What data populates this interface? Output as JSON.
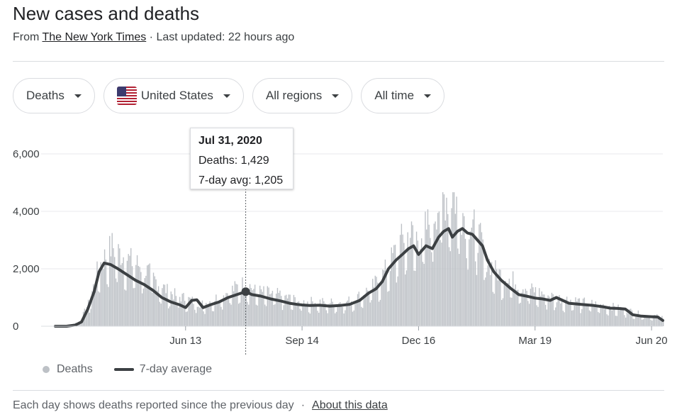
{
  "header": {
    "title": "New cases and deaths",
    "source_prefix": "From",
    "source_name": "The New York Times",
    "source_suffix": "· Last updated: 22 hours ago"
  },
  "filters": {
    "metric": "Deaths",
    "location": "United States",
    "region": "All regions",
    "period": "All time"
  },
  "tooltip": {
    "date": "Jul 31, 2020",
    "deaths": "Deaths: 1,429",
    "avg": "7-day avg: 1,205"
  },
  "legend": {
    "bars": "Deaths",
    "line": "7-day average"
  },
  "footer": {
    "note": "Each day shows deaths reported since the previous day",
    "separator": "·",
    "link": "About this data"
  },
  "colors": {
    "bars": "#bdc1c6",
    "line": "#3c4043",
    "grid": "#e8eaed",
    "flag_red": "#b22234",
    "flag_blue": "#3c3b6e"
  },
  "chart_data": {
    "type": "bar",
    "title": "New cases and deaths",
    "ylim": [
      0,
      6000
    ],
    "yticks": [
      0,
      2000,
      4000,
      6000
    ],
    "ytick_labels": [
      "0",
      "2,000",
      "4,000",
      "6,000"
    ],
    "xlim": [
      "2020-03-01",
      "2021-06-29"
    ],
    "xticks": [
      "2020-06-13",
      "2020-09-14",
      "2020-12-16",
      "2021-03-19",
      "2021-06-20"
    ],
    "xtick_labels": [
      "Jun 13",
      "Sep 14",
      "Dec 16",
      "Mar 19",
      "Jun 20"
    ],
    "highlight": {
      "x": "2020-07-31",
      "deaths": 1429,
      "avg": 1205
    },
    "series": [
      {
        "name": "Deaths",
        "style": "bars",
        "x": [
          "2020-03-01",
          "2020-03-10",
          "2020-03-20",
          "2020-03-28",
          "2020-04-04",
          "2020-04-10",
          "2020-04-15",
          "2020-04-20",
          "2020-04-25",
          "2020-05-01",
          "2020-05-08",
          "2020-05-15",
          "2020-05-22",
          "2020-05-29",
          "2020-06-05",
          "2020-06-13",
          "2020-06-20",
          "2020-06-27",
          "2020-07-04",
          "2020-07-11",
          "2020-07-18",
          "2020-07-25",
          "2020-07-31",
          "2020-08-07",
          "2020-08-15",
          "2020-08-22",
          "2020-08-29",
          "2020-09-05",
          "2020-09-14",
          "2020-09-22",
          "2020-09-30",
          "2020-10-08",
          "2020-10-16",
          "2020-10-24",
          "2020-11-01",
          "2020-11-08",
          "2020-11-15",
          "2020-11-22",
          "2020-11-29",
          "2020-12-04",
          "2020-12-09",
          "2020-12-16",
          "2020-12-22",
          "2020-12-29",
          "2021-01-05",
          "2021-01-12",
          "2021-01-18",
          "2021-01-25",
          "2021-02-01",
          "2021-02-08",
          "2021-02-15",
          "2021-02-22",
          "2021-03-01",
          "2021-03-08",
          "2021-03-19",
          "2021-03-29",
          "2021-04-08",
          "2021-04-18",
          "2021-04-28",
          "2021-05-08",
          "2021-05-18",
          "2021-05-28",
          "2021-06-07",
          "2021-06-14",
          "2021-06-20",
          "2021-06-29"
        ],
        "values": [
          0,
          10,
          150,
          800,
          1900,
          2300,
          2600,
          2400,
          2250,
          2100,
          1950,
          1700,
          1400,
          1150,
          1000,
          900,
          800,
          720,
          850,
          1000,
          1150,
          1300,
          1429,
          1150,
          1100,
          1050,
          1000,
          900,
          780,
          800,
          780,
          770,
          780,
          850,
          1050,
          1250,
          1550,
          2000,
          2600,
          2900,
          3000,
          2900,
          3200,
          3800,
          4200,
          4300,
          3800,
          3400,
          3000,
          2200,
          1800,
          1600,
          1500,
          1300,
          1150,
          1000,
          900,
          850,
          780,
          700,
          650,
          550,
          450,
          350,
          350,
          300
        ]
      },
      {
        "name": "7-day average",
        "style": "line",
        "x": [
          "2020-03-01",
          "2020-03-10",
          "2020-03-17",
          "2020-03-22",
          "2020-03-27",
          "2020-04-01",
          "2020-04-05",
          "2020-04-09",
          "2020-04-14",
          "2020-04-20",
          "2020-04-27",
          "2020-05-04",
          "2020-05-11",
          "2020-05-18",
          "2020-05-25",
          "2020-06-01",
          "2020-06-08",
          "2020-06-13",
          "2020-06-18",
          "2020-06-22",
          "2020-06-27",
          "2020-07-03",
          "2020-07-10",
          "2020-07-17",
          "2020-07-24",
          "2020-07-31",
          "2020-08-05",
          "2020-08-12",
          "2020-08-20",
          "2020-08-28",
          "2020-09-04",
          "2020-09-10",
          "2020-09-14",
          "2020-09-20",
          "2020-09-28",
          "2020-10-06",
          "2020-10-14",
          "2020-10-22",
          "2020-10-30",
          "2020-11-06",
          "2020-11-12",
          "2020-11-17",
          "2020-11-22",
          "2020-11-28",
          "2020-12-03",
          "2020-12-08",
          "2020-12-12",
          "2020-12-16",
          "2020-12-22",
          "2020-12-27",
          "2021-01-01",
          "2021-01-05",
          "2021-01-09",
          "2021-01-12",
          "2021-01-16",
          "2021-01-20",
          "2021-01-24",
          "2021-01-28",
          "2021-02-01",
          "2021-02-05",
          "2021-02-09",
          "2021-02-14",
          "2021-02-20",
          "2021-02-28",
          "2021-03-06",
          "2021-03-12",
          "2021-03-19",
          "2021-03-25",
          "2021-03-31",
          "2021-04-05",
          "2021-04-15",
          "2021-04-25",
          "2021-05-05",
          "2021-05-12",
          "2021-05-18",
          "2021-05-24",
          "2021-05-30",
          "2021-06-05",
          "2021-06-12",
          "2021-06-20",
          "2021-06-25",
          "2021-06-29"
        ],
        "values": [
          0,
          0,
          40,
          150,
          600,
          1200,
          1900,
          2200,
          2150,
          2000,
          1800,
          1600,
          1450,
          1250,
          1000,
          850,
          750,
          650,
          900,
          920,
          650,
          750,
          850,
          1000,
          1100,
          1205,
          1100,
          1050,
          950,
          880,
          800,
          760,
          740,
          720,
          730,
          700,
          720,
          760,
          900,
          1150,
          1300,
          1550,
          2000,
          2300,
          2500,
          2700,
          2800,
          2500,
          2800,
          2700,
          3100,
          3300,
          3400,
          3100,
          3300,
          3400,
          3250,
          3200,
          3000,
          2800,
          2300,
          1900,
          1600,
          1300,
          1100,
          1050,
          980,
          950,
          900,
          1000,
          800,
          760,
          720,
          680,
          630,
          620,
          600,
          400,
          350,
          330,
          320,
          200
        ]
      }
    ]
  }
}
